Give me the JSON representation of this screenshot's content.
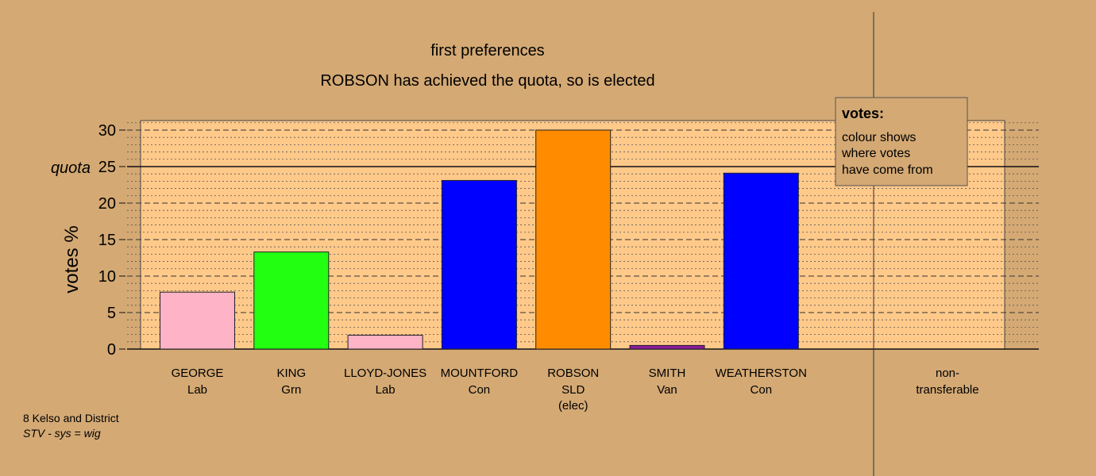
{
  "chart_data": {
    "type": "bar",
    "title": "first preferences",
    "subtitle": "ROBSON has achieved the quota, so is elected",
    "ylabel": "votes %",
    "ylim": [
      0,
      31.3
    ],
    "yticks": [
      0,
      5,
      10,
      15,
      20,
      25,
      30
    ],
    "quota": {
      "label": "quota",
      "value": 25
    },
    "categories": [
      {
        "name": "GEORGE",
        "party": "Lab",
        "note": "",
        "value": 7.8,
        "color": "#ffb3c6"
      },
      {
        "name": "KING",
        "party": "Grn",
        "note": "",
        "value": 13.3,
        "color": "#22ff11"
      },
      {
        "name": "LLOYD-JONES",
        "party": "Lab",
        "note": "",
        "value": 1.9,
        "color": "#ffb3c6"
      },
      {
        "name": "MOUNTFORD",
        "party": "Con",
        "note": "",
        "value": 23.1,
        "color": "#0000ff"
      },
      {
        "name": "ROBSON",
        "party": "SLD",
        "note": "(elec)",
        "value": 30.0,
        "color": "#ff8c00"
      },
      {
        "name": "SMITH",
        "party": "Van",
        "note": "",
        "value": 0.5,
        "color": "#8b1a9e"
      },
      {
        "name": "WEATHERSTON",
        "party": "Con",
        "note": "",
        "value": 24.1,
        "color": "#0000ff"
      }
    ],
    "nontransferable": {
      "label_line1": "non-",
      "label_line2": "transferable",
      "value": 0
    },
    "legend": {
      "title": "votes:",
      "lines": [
        "colour shows",
        "where votes",
        "have come from"
      ]
    },
    "grid": true,
    "colors": {
      "background": "#d4a974",
      "plot_area": "#ffc98a"
    }
  },
  "footer": {
    "line1": "8 Kelso and District",
    "line2": "STV - sys = wig"
  }
}
